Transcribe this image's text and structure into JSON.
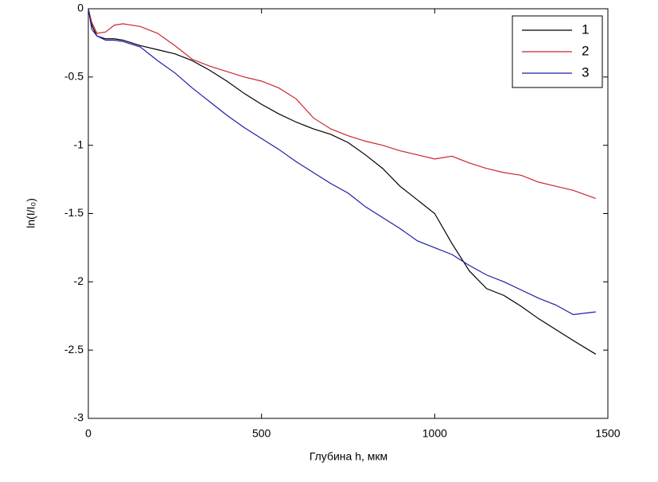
{
  "chart_data": {
    "type": "line",
    "xlabel": "Глубина h, мкм",
    "ylabel": "ln(I/I₀)",
    "x": [
      0,
      10,
      25,
      50,
      75,
      100,
      150,
      200,
      250,
      300,
      350,
      400,
      450,
      500,
      550,
      600,
      650,
      700,
      750,
      800,
      850,
      900,
      950,
      1000,
      1050,
      1100,
      1150,
      1200,
      1250,
      1300,
      1350,
      1400,
      1465
    ],
    "series": [
      {
        "name": "1",
        "color": "#000000",
        "values": [
          0,
          -0.12,
          -0.2,
          -0.22,
          -0.22,
          -0.23,
          -0.27,
          -0.3,
          -0.33,
          -0.38,
          -0.45,
          -0.53,
          -0.62,
          -0.7,
          -0.77,
          -0.83,
          -0.88,
          -0.92,
          -0.98,
          -1.07,
          -1.17,
          -1.3,
          -1.4,
          -1.5,
          -1.72,
          -1.92,
          -2.05,
          -2.1,
          -2.18,
          -2.27,
          -2.35,
          -2.43,
          -2.53
        ]
      },
      {
        "name": "2",
        "color": "#c8282d",
        "values": [
          0,
          -0.1,
          -0.18,
          -0.17,
          -0.12,
          -0.11,
          -0.13,
          -0.18,
          -0.27,
          -0.37,
          -0.42,
          -0.46,
          -0.5,
          -0.53,
          -0.58,
          -0.66,
          -0.8,
          -0.88,
          -0.93,
          -0.97,
          -1.0,
          -1.04,
          -1.07,
          -1.1,
          -1.08,
          -1.13,
          -1.17,
          -1.2,
          -1.22,
          -1.27,
          -1.3,
          -1.33,
          -1.39
        ]
      },
      {
        "name": "3",
        "color": "#1c1ca8",
        "values": [
          0,
          -0.15,
          -0.2,
          -0.23,
          -0.23,
          -0.24,
          -0.28,
          -0.38,
          -0.47,
          -0.58,
          -0.68,
          -0.78,
          -0.87,
          -0.95,
          -1.03,
          -1.12,
          -1.2,
          -1.28,
          -1.35,
          -1.45,
          -1.53,
          -1.61,
          -1.7,
          -1.75,
          -1.8,
          -1.88,
          -1.95,
          -2.0,
          -2.06,
          -2.12,
          -2.17,
          -2.24,
          -2.22
        ]
      }
    ],
    "xlim": [
      0,
      1500
    ],
    "xticks": [
      0,
      500,
      1000,
      1500
    ],
    "ylim": [
      -3,
      0
    ],
    "yticks": [
      0,
      -0.5,
      -1,
      -1.5,
      -2,
      -2.5,
      -3
    ],
    "legend": "upper right"
  }
}
